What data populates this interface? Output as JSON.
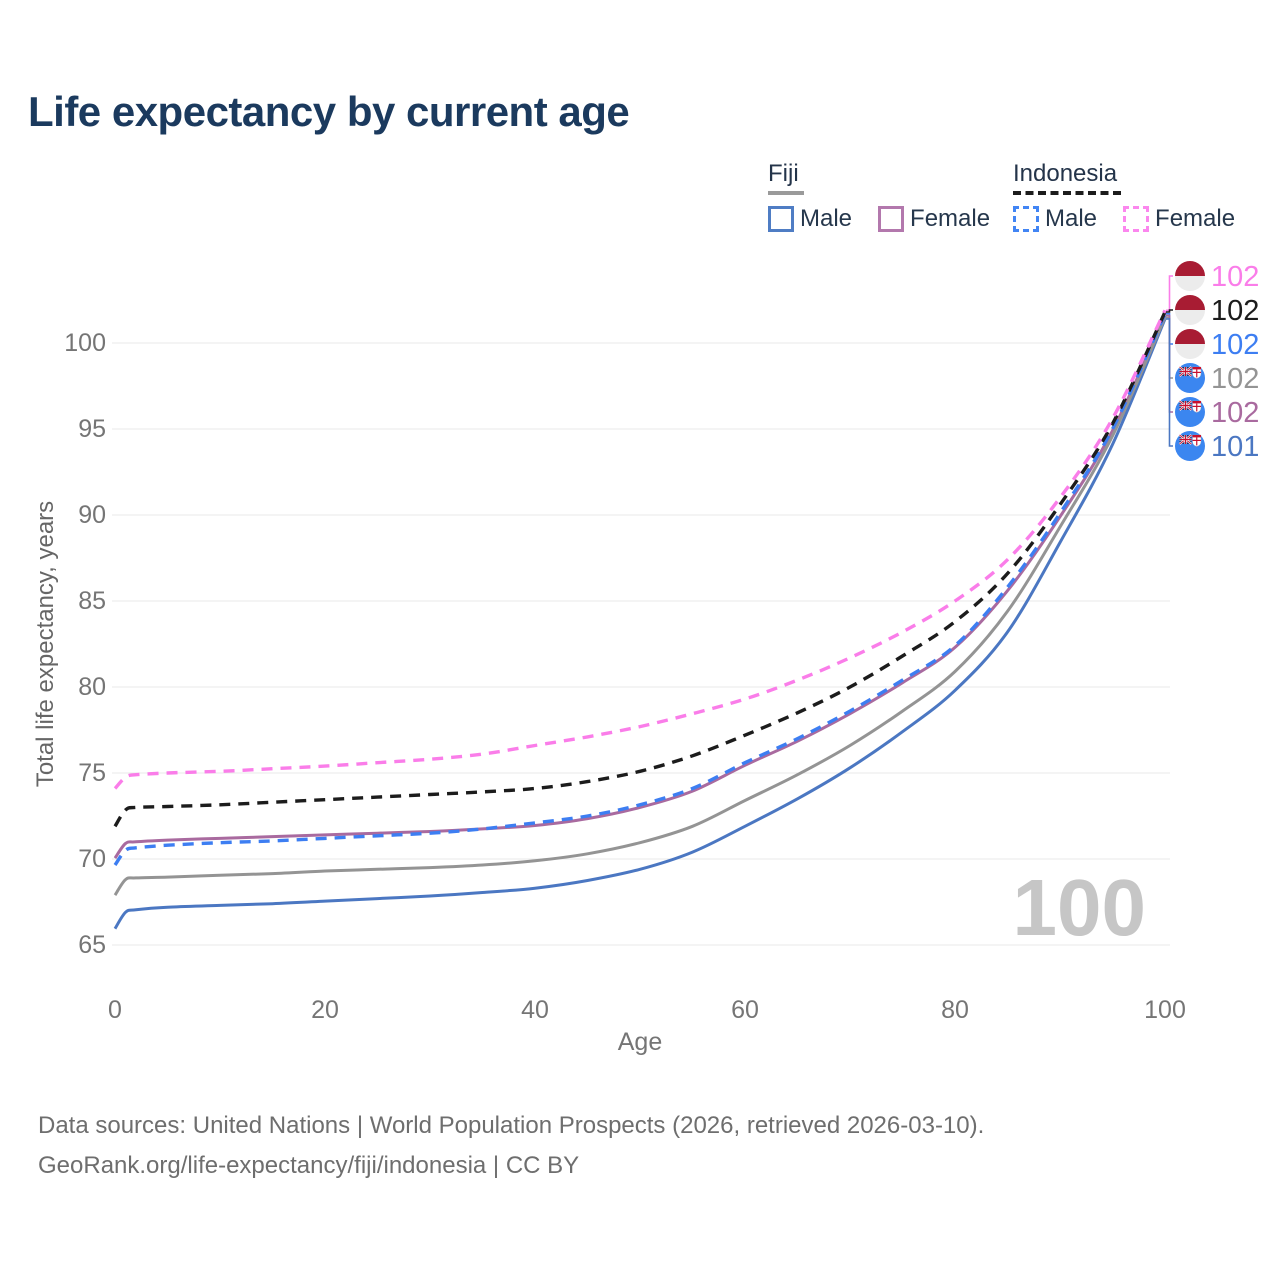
{
  "page": {
    "title": "Life expectancy by current age"
  },
  "legend": {
    "groups": [
      {
        "country": "Fiji",
        "line_style": "solid",
        "underline_color": "#9a9a9a",
        "items": [
          {
            "label": "Male",
            "color": "#4f7dc4",
            "dashed": false
          },
          {
            "label": "Female",
            "color": "#b378ad",
            "dashed": false
          }
        ]
      },
      {
        "country": "Indonesia",
        "line_style": "dashed",
        "underline_color": "#1c1c1c",
        "items": [
          {
            "label": "Male",
            "color": "#4285f4",
            "dashed": true
          },
          {
            "label": "Female",
            "color": "#fb87ee",
            "dashed": true
          }
        ]
      }
    ]
  },
  "chart_data": {
    "type": "line",
    "title": "Life expectancy by current age",
    "xlabel": "Age",
    "ylabel": "Total life expectancy, years",
    "x_ticks": [
      0,
      20,
      40,
      60,
      80,
      100
    ],
    "y_ticks": [
      65,
      70,
      75,
      80,
      85,
      90,
      95,
      100
    ],
    "xlim": [
      0,
      100
    ],
    "ylim": [
      65,
      103
    ],
    "grid": "horizontal",
    "legend_position": "top-right",
    "age_counter": "100",
    "ages": [
      0,
      1,
      2,
      5,
      10,
      15,
      20,
      25,
      30,
      35,
      40,
      45,
      50,
      55,
      60,
      65,
      70,
      75,
      80,
      85,
      90,
      95,
      100
    ],
    "series": [
      {
        "name": "Indonesia Female",
        "country": "Indonesia",
        "sex": "Female",
        "flag": "indonesia",
        "color": "#fa7de9",
        "dashed": true,
        "end_label": "102",
        "values": [
          74.1,
          74.75,
          74.9,
          75.0,
          75.1,
          75.25,
          75.4,
          75.6,
          75.8,
          76.1,
          76.6,
          77.1,
          77.7,
          78.45,
          79.3,
          80.4,
          81.7,
          83.2,
          85.0,
          87.4,
          91.0,
          95.6,
          101.9
        ]
      },
      {
        "name": "Indonesia Both sexes",
        "country": "Indonesia",
        "sex": "Both",
        "flag": "indonesia",
        "color": "#1c1c1c",
        "dashed": true,
        "end_label": "102",
        "values": [
          71.9,
          72.85,
          73.0,
          73.05,
          73.15,
          73.3,
          73.45,
          73.6,
          73.75,
          73.9,
          74.1,
          74.5,
          75.1,
          76.0,
          77.2,
          78.5,
          80.0,
          81.8,
          83.8,
          86.6,
          90.6,
          95.3,
          101.8
        ]
      },
      {
        "name": "Indonesia Male",
        "country": "Indonesia",
        "sex": "Male",
        "flag": "indonesia",
        "color": "#3d7ef2",
        "dashed": true,
        "end_label": "102",
        "values": [
          69.65,
          70.5,
          70.65,
          70.8,
          70.95,
          71.05,
          71.2,
          71.35,
          71.5,
          71.75,
          72.1,
          72.5,
          73.15,
          74.1,
          75.6,
          77.0,
          78.6,
          80.4,
          82.4,
          85.8,
          90.1,
          95.0,
          101.7
        ]
      },
      {
        "name": "Fiji Both sexes",
        "country": "Fiji",
        "sex": "Both",
        "flag": "fiji",
        "color": "#949494",
        "dashed": false,
        "end_label": "102",
        "values": [
          67.9,
          68.8,
          68.9,
          68.95,
          69.05,
          69.15,
          69.3,
          69.4,
          69.5,
          69.65,
          69.9,
          70.3,
          70.95,
          71.9,
          73.4,
          74.9,
          76.6,
          78.6,
          80.9,
          84.4,
          89.3,
          94.6,
          101.5
        ]
      },
      {
        "name": "Fiji Female",
        "country": "Fiji",
        "sex": "Female",
        "flag": "fiji",
        "color": "#a96a9f",
        "dashed": false,
        "end_label": "102",
        "values": [
          70.05,
          70.9,
          71.0,
          71.1,
          71.2,
          71.3,
          71.4,
          71.5,
          71.6,
          71.75,
          71.95,
          72.35,
          73.0,
          73.95,
          75.45,
          76.85,
          78.45,
          80.25,
          82.3,
          85.6,
          89.9,
          94.9,
          101.6
        ]
      },
      {
        "name": "Fiji Male",
        "country": "Fiji",
        "sex": "Male",
        "flag": "fiji",
        "color": "#4b77c2",
        "dashed": false,
        "end_label": "101",
        "values": [
          65.95,
          66.9,
          67.05,
          67.2,
          67.3,
          67.4,
          67.55,
          67.7,
          67.85,
          68.05,
          68.3,
          68.75,
          69.4,
          70.4,
          71.9,
          73.5,
          75.3,
          77.4,
          79.8,
          83.2,
          88.4,
          94.1,
          101.4
        ]
      }
    ]
  },
  "footer": {
    "line1": "Data sources: United Nations | World Population Prospects (2026, retrieved 2026-03-10).",
    "line2": "GeoRank.org/life-expectancy/fiji/indonesia | CC BY"
  }
}
